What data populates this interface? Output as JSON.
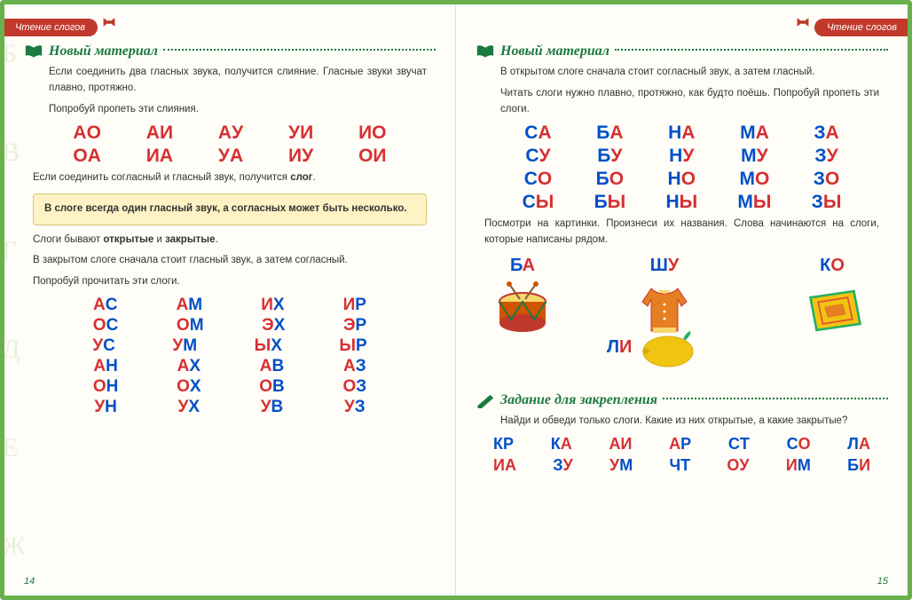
{
  "tab_title": "Чтение слогов",
  "section_new_material": "Новый материал",
  "section_exercise": "Задание для закрепления",
  "left": {
    "intro1": "Если соединить два гласных звука, получится слияние. Гласные звуки звучат плавно, протяжно.",
    "intro2": "Попробуй пропеть эти слияния.",
    "vowel_rows": [
      [
        "АО",
        "АИ",
        "АУ",
        "УИ",
        "ИО"
      ],
      [
        "ОА",
        "ИА",
        "УА",
        "ИУ",
        "ОИ"
      ]
    ],
    "para2_a": "Если соединить согласный и гласный звук, получится ",
    "para2_b": "слог",
    "highlight": "В слоге всегда один гласный звук, а согласных может быть несколько.",
    "para3_a": "Слоги бывают ",
    "para3_b": "открытые",
    "para3_c": " и ",
    "para3_d": "закрытые",
    "para4": "В закрытом слоге сначала стоит гласный звук, а затем согласный.",
    "para5": "Попробуй прочитать эти слоги.",
    "closed_rows": [
      [
        [
          "А",
          "С"
        ],
        [
          "А",
          "М"
        ],
        [
          "И",
          "Х"
        ],
        [
          "И",
          "Р"
        ]
      ],
      [
        [
          "О",
          "С"
        ],
        [
          "О",
          "М"
        ],
        [
          "Э",
          "Х"
        ],
        [
          "Э",
          "Р"
        ]
      ],
      [
        [
          "У",
          "С"
        ],
        [
          "У",
          "М"
        ],
        [
          "Ы",
          "Х"
        ],
        [
          "Ы",
          "Р"
        ]
      ],
      [
        [
          "А",
          "Н"
        ],
        [
          "А",
          "Х"
        ],
        [
          "А",
          "В"
        ],
        [
          "А",
          "З"
        ]
      ],
      [
        [
          "О",
          "Н"
        ],
        [
          "О",
          "Х"
        ],
        [
          "О",
          "В"
        ],
        [
          "О",
          "З"
        ]
      ],
      [
        [
          "У",
          "Н"
        ],
        [
          "У",
          "Х"
        ],
        [
          "У",
          "В"
        ],
        [
          "У",
          "З"
        ]
      ]
    ],
    "page_num": "14"
  },
  "right": {
    "intro1": "В открытом слоге сначала стоит согласный звук, а затем гласный.",
    "intro2": "Читать слоги нужно плавно, протяжно, как будто поёшь. Попробуй пропеть эти слоги.",
    "open_rows": [
      [
        [
          "С",
          "А"
        ],
        [
          "Б",
          "А"
        ],
        [
          "Н",
          "А"
        ],
        [
          "М",
          "А"
        ],
        [
          "З",
          "А"
        ]
      ],
      [
        [
          "С",
          "У"
        ],
        [
          "Б",
          "У"
        ],
        [
          "Н",
          "У"
        ],
        [
          "М",
          "У"
        ],
        [
          "З",
          "У"
        ]
      ],
      [
        [
          "С",
          "О"
        ],
        [
          "Б",
          "О"
        ],
        [
          "Н",
          "О"
        ],
        [
          "М",
          "О"
        ],
        [
          "З",
          "О"
        ]
      ],
      [
        [
          "С",
          "Ы"
        ],
        [
          "Б",
          "Ы"
        ],
        [
          "Н",
          "Ы"
        ],
        [
          "М",
          "Ы"
        ],
        [
          "З",
          "Ы"
        ]
      ]
    ],
    "pictures_intro": "Посмотри на картинки. Произнеси их названия. Слова начинаются на слоги, которые написаны рядом.",
    "pics": {
      "ba": {
        "c": "Б",
        "v": "А"
      },
      "shu": {
        "c": "Ш",
        "v": "У"
      },
      "ko": {
        "c": "К",
        "v": "О"
      },
      "li": {
        "c": "Л",
        "v": "И"
      }
    },
    "exercise_text": "Найди и обведи только слоги. Какие из них открытые, а какие закрытые?",
    "exercise_rows": [
      [
        [
          "К",
          "Р"
        ],
        [
          "К",
          "А"
        ],
        [
          "А",
          "И"
        ],
        [
          "А",
          "Р"
        ],
        [
          "С",
          "Т"
        ],
        [
          "С",
          "О"
        ],
        [
          "Л",
          "А"
        ]
      ],
      [
        [
          "И",
          "А"
        ],
        [
          "З",
          "У"
        ],
        [
          "У",
          "М"
        ],
        [
          "Ч",
          "Т"
        ],
        [
          "О",
          "У"
        ],
        [
          "И",
          "М"
        ],
        [
          "Б",
          "И"
        ]
      ]
    ],
    "page_num": "15"
  },
  "colors": {
    "vowel": "#d63031",
    "consonant": "#0050c8",
    "green": "#1b7a3f",
    "border": "#6ab04c",
    "tab": "#c0392b",
    "highlight_bg": "#fdf3c4"
  }
}
